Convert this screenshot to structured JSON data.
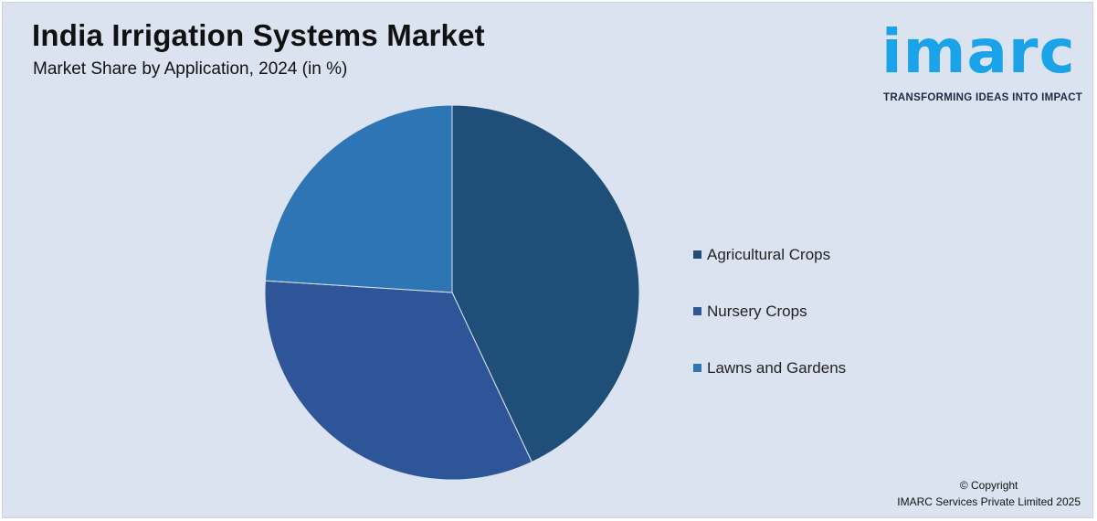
{
  "header": {
    "title": "India Irrigation Systems Market",
    "subtitle": "Market Share by Application, 2024 (in %)"
  },
  "logo": {
    "wordmark": "imarc",
    "tagline": "TRANSFORMING IDEAS INTO IMPACT",
    "color": "#1aa3e8"
  },
  "chart_data": {
    "type": "pie",
    "title": "",
    "categories": [
      "Agricultural Crops",
      "Nursery Crops",
      "Lawns and Gardens"
    ],
    "values": [
      43,
      33,
      24
    ],
    "colors": [
      "#1f4e79",
      "#2e5597",
      "#2e75b6"
    ],
    "legend_position": "right",
    "start_angle_deg": 0,
    "direction": "clockwise"
  },
  "footer": {
    "copyright_line1": "© Copyright",
    "copyright_line2": "IMARC Services Private Limited 2025"
  }
}
